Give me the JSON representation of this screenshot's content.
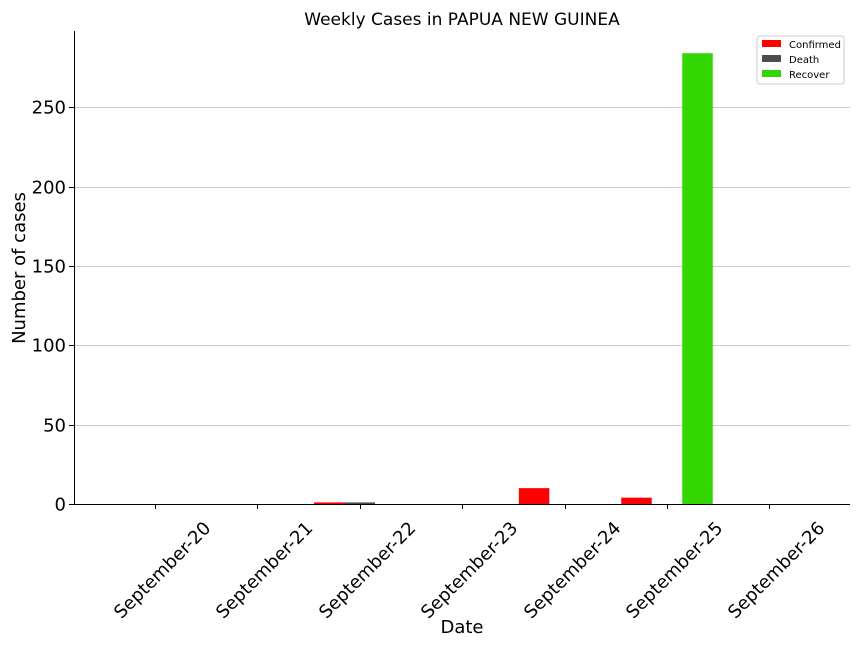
{
  "chart_data": {
    "type": "bar",
    "title": "Weekly Cases in PAPUA NEW GUINEA",
    "xlabel": "Date",
    "ylabel": "Number of cases",
    "categories": [
      "September-20",
      "September-21",
      "September-22",
      "September-23",
      "September-24",
      "September-25",
      "September-26"
    ],
    "series": [
      {
        "name": "Confirmed",
        "color": "#ff0000",
        "values": [
          0,
          0,
          1,
          0,
          10,
          4,
          0
        ]
      },
      {
        "name": "Death",
        "color": "#4d4d4d",
        "values": [
          0,
          0,
          1,
          0,
          0,
          0,
          0
        ]
      },
      {
        "name": "Recover",
        "color": "#33d600",
        "values": [
          0,
          0,
          0,
          0,
          0,
          284,
          0
        ]
      }
    ],
    "ylim": [
      0,
      298
    ],
    "yticks": [
      0,
      50,
      100,
      150,
      200,
      250
    ],
    "grid": "horizontal",
    "legend_position": "top-right"
  }
}
